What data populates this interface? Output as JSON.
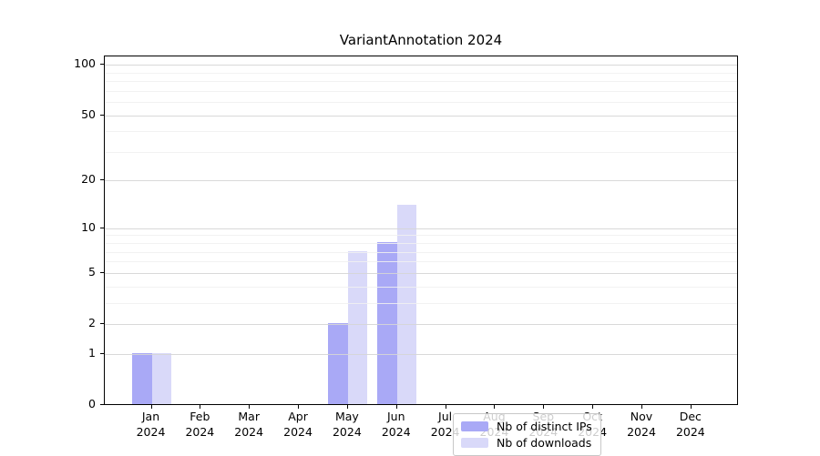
{
  "title": "VariantAnnotation 2024",
  "chart_data": {
    "type": "bar",
    "title": "VariantAnnotation 2024",
    "categories": [
      "Jan 2024",
      "Feb 2024",
      "Mar 2024",
      "Apr 2024",
      "May 2024",
      "Jun 2024",
      "Jul 2024",
      "Aug 2024",
      "Sep 2024",
      "Oct 2024",
      "Nov 2024",
      "Dec 2024"
    ],
    "series": [
      {
        "name": "Nb of distinct IPs",
        "color": "#a9a9f6",
        "values": [
          1,
          0,
          0,
          0,
          2,
          8,
          0,
          0,
          0,
          0,
          0,
          0
        ]
      },
      {
        "name": "Nb of downloads",
        "color": "#d9d9f9",
        "values": [
          1,
          0,
          0,
          0,
          7,
          14,
          0,
          0,
          0,
          0,
          0,
          0
        ]
      }
    ],
    "y_axis": {
      "scale": "log1p",
      "ticks": [
        0,
        1,
        2,
        5,
        10,
        20,
        50,
        100
      ],
      "minor_gridlines": [
        3,
        4,
        6,
        7,
        8,
        9,
        30,
        40,
        60,
        70,
        80,
        90
      ],
      "range": [
        0,
        100
      ]
    },
    "grid": true,
    "legend_position": "inside-bottom-center"
  },
  "colors": {
    "bar_dark": "#a9a9f6",
    "bar_light": "#d9d9f9",
    "grid_major": "rgba(214,214,214,0.92)",
    "grid_minor": "rgba(240,240,240,0.88)",
    "axis": "#000000",
    "background": "#ffffff"
  }
}
